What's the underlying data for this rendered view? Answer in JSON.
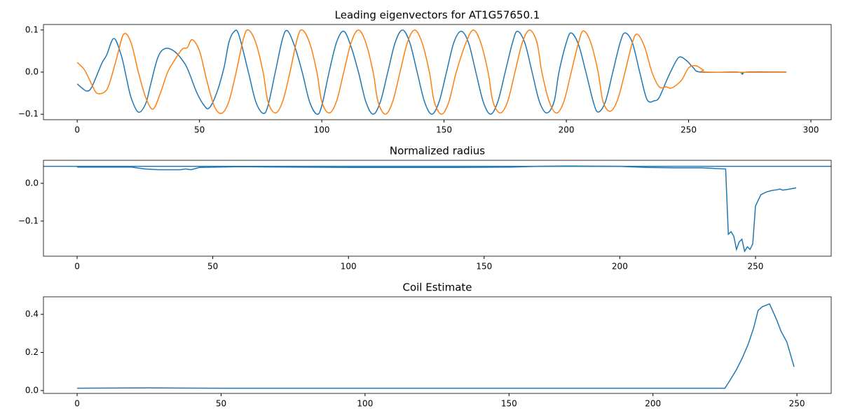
{
  "chart_data": [
    {
      "type": "line",
      "title": "Leading eigenvectors for AT1G57650.1",
      "series": [
        {
          "color": "#1f77b4",
          "x": [
            0,
            2,
            4,
            6,
            10,
            12,
            15,
            18,
            20,
            22,
            25,
            28,
            30,
            33,
            36,
            40,
            44,
            46,
            49,
            52,
            54,
            57,
            60,
            62,
            64,
            66,
            70,
            73,
            76,
            78,
            81,
            84,
            86,
            89,
            92,
            95,
            98,
            100,
            103,
            106,
            109,
            112,
            115,
            118,
            121,
            124,
            127,
            130,
            133,
            136,
            139,
            142,
            145,
            148,
            151,
            154,
            157,
            160,
            163,
            166,
            169,
            172,
            175,
            178,
            180,
            183,
            186,
            189,
            192,
            195,
            197,
            200,
            202,
            205,
            208,
            211,
            213,
            216,
            219,
            222,
            224,
            227,
            230,
            233,
            236,
            238,
            241,
            243,
            246,
            249,
            252,
            255,
            270,
            272,
            274,
            290
          ],
          "values": [
            -0.028,
            -0.038,
            -0.045,
            -0.035,
            0.02,
            0.04,
            0.08,
            0.04,
            -0.01,
            -0.06,
            -0.095,
            -0.075,
            -0.03,
            0.035,
            0.056,
            0.048,
            0.02,
            -0.005,
            -0.05,
            -0.08,
            -0.085,
            -0.05,
            0.01,
            0.07,
            0.095,
            0.09,
            0.0,
            -0.07,
            -0.098,
            -0.08,
            0.0,
            0.08,
            0.098,
            0.06,
            0.0,
            -0.07,
            -0.1,
            -0.08,
            0.0,
            0.07,
            0.097,
            0.06,
            0.0,
            -0.07,
            -0.1,
            -0.07,
            0.0,
            0.07,
            0.1,
            0.07,
            0.0,
            -0.07,
            -0.1,
            -0.07,
            0.0,
            0.07,
            0.097,
            0.07,
            0.0,
            -0.07,
            -0.1,
            -0.07,
            0.0,
            0.07,
            0.097,
            0.07,
            0.0,
            -0.07,
            -0.097,
            -0.07,
            0.0,
            0.07,
            0.093,
            0.065,
            0.0,
            -0.07,
            -0.095,
            -0.07,
            0.0,
            0.07,
            0.093,
            0.07,
            0.0,
            -0.065,
            -0.068,
            -0.06,
            -0.02,
            0.005,
            0.035,
            0.028,
            0.01,
            0.0,
            0.0,
            -0.005,
            0.0,
            0.0
          ]
        },
        {
          "color": "#ff7f0e",
          "x": [
            0,
            3,
            6,
            8,
            11,
            13,
            16,
            19,
            22,
            25,
            28,
            31,
            34,
            37,
            40,
            43,
            45,
            47,
            50,
            53,
            56,
            59,
            62,
            65,
            68,
            70,
            73,
            76,
            78,
            81,
            84,
            87,
            90,
            92,
            95,
            98,
            100,
            103,
            106,
            109,
            112,
            115,
            118,
            121,
            123,
            126,
            129,
            132,
            135,
            138,
            141,
            144,
            146,
            149,
            152,
            155,
            159,
            162,
            165,
            168,
            170,
            173,
            176,
            179,
            182,
            185,
            188,
            190,
            193,
            196,
            199,
            202,
            205,
            207,
            210,
            213,
            215,
            218,
            221,
            224,
            227,
            229,
            232,
            235,
            238,
            241,
            243,
            247,
            250,
            253,
            256,
            258,
            290
          ],
          "values": [
            0.023,
            0.005,
            -0.03,
            -0.05,
            -0.048,
            -0.03,
            0.03,
            0.09,
            0.07,
            0.0,
            -0.06,
            -0.088,
            -0.05,
            0.0,
            0.03,
            0.055,
            0.058,
            0.077,
            0.05,
            -0.02,
            -0.08,
            -0.098,
            -0.07,
            0.0,
            0.08,
            0.1,
            0.07,
            0.0,
            -0.07,
            -0.097,
            -0.07,
            0.0,
            0.08,
            0.1,
            0.07,
            0.0,
            -0.07,
            -0.097,
            -0.07,
            0.0,
            0.07,
            0.1,
            0.07,
            0.0,
            -0.07,
            -0.1,
            -0.07,
            0.0,
            0.07,
            0.1,
            0.07,
            0.0,
            -0.07,
            -0.1,
            -0.07,
            0.0,
            0.07,
            0.1,
            0.07,
            0.0,
            -0.07,
            -0.097,
            -0.07,
            0.0,
            0.07,
            0.1,
            0.07,
            0.0,
            -0.07,
            -0.097,
            -0.07,
            0.0,
            0.07,
            0.098,
            0.07,
            0.0,
            -0.07,
            -0.093,
            -0.065,
            0.0,
            0.07,
            0.09,
            0.06,
            0.0,
            -0.035,
            -0.035,
            -0.038,
            -0.02,
            0.01,
            0.015,
            0.005,
            0.0,
            0.0
          ]
        }
      ],
      "xlim": [
        -13.8,
        308.3
      ],
      "ylim": [
        -0.113,
        0.113
      ],
      "xticks": [
        0,
        50,
        100,
        150,
        200,
        250,
        300
      ],
      "yticks": [
        {
          "value": -0.1,
          "label": "−0.1"
        },
        {
          "value": 0,
          "label": "0.0"
        },
        0.1
      ]
    },
    {
      "type": "line",
      "title": "Normalized radius",
      "series": [
        {
          "color": "#1f77b4",
          "x": [
            0,
            20,
            25,
            30,
            38,
            40,
            42,
            45,
            60,
            80,
            100,
            140,
            160,
            170,
            180,
            200,
            210,
            220,
            230,
            239,
            240,
            241,
            242,
            243,
            244,
            245,
            246,
            247,
            248,
            249,
            250,
            252,
            254,
            256,
            258,
            259,
            260,
            262,
            265
          ],
          "values": [
            0.043,
            0.043,
            0.038,
            0.036,
            0.036,
            0.038,
            0.036,
            0.042,
            0.044,
            0.043,
            0.042,
            0.042,
            0.043,
            0.045,
            0.046,
            0.045,
            0.042,
            0.041,
            0.041,
            0.038,
            -0.135,
            -0.128,
            -0.14,
            -0.175,
            -0.155,
            -0.148,
            -0.18,
            -0.168,
            -0.175,
            -0.16,
            -0.06,
            -0.03,
            -0.023,
            -0.019,
            -0.017,
            -0.015,
            -0.018,
            -0.016,
            -0.012
          ]
        }
      ],
      "reference_line": 0.045,
      "reference_color": "#1f77b4",
      "xlim": [
        -12.4,
        277.9
      ],
      "ylim": [
        -0.193,
        0.061
      ],
      "xticks": [
        0,
        50,
        100,
        150,
        200,
        250
      ],
      "yticks": [
        {
          "value": -0.1,
          "label": "−0.1"
        },
        {
          "value": 0,
          "label": "0.0"
        }
      ]
    },
    {
      "type": "line",
      "title": "Coil Estimate",
      "series": [
        {
          "color": "#1f77b4",
          "x": [
            0,
            25,
            50,
            225,
            227,
            229,
            231,
            233,
            235,
            236.5,
            238,
            240.5,
            243,
            244.5,
            246.5,
            249
          ],
          "values": [
            0.012,
            0.014,
            0.012,
            0.012,
            0.06,
            0.11,
            0.17,
            0.24,
            0.33,
            0.42,
            0.44,
            0.455,
            0.37,
            0.31,
            0.255,
            0.125
          ]
        }
      ],
      "xlim": [
        -11.7,
        261.9
      ],
      "ylim": [
        -0.015,
        0.492
      ],
      "xticks": [
        0,
        50,
        100,
        150,
        200,
        250
      ],
      "yticks": [
        {
          "value": 0,
          "label": "0.0"
        },
        0.2,
        0.4
      ]
    }
  ]
}
